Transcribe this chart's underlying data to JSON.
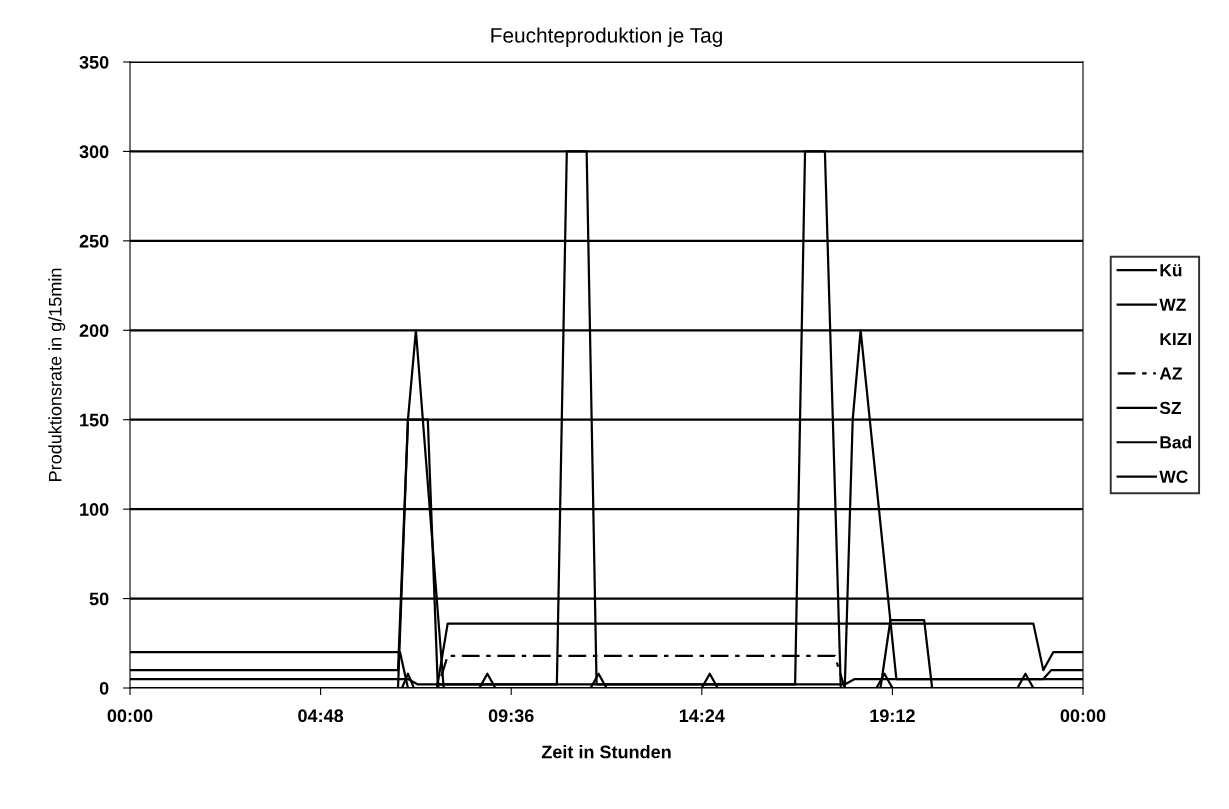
{
  "chart_data": {
    "type": "line",
    "title": "Feuchteproduktion je Tag",
    "xlabel": "Zeit in Stunden",
    "ylabel": "Produktionsrate in g/15min",
    "xlim": [
      0,
      24
    ],
    "xticks": [
      {
        "value": 0,
        "label": "00:00"
      },
      {
        "value": 4.8,
        "label": "04:48"
      },
      {
        "value": 9.6,
        "label": "09:36"
      },
      {
        "value": 14.4,
        "label": "14:24"
      },
      {
        "value": 19.2,
        "label": "19:12"
      },
      {
        "value": 24,
        "label": "00:00"
      }
    ],
    "ylim": [
      0,
      350
    ],
    "yticks": [
      0,
      50,
      100,
      150,
      200,
      250,
      300,
      350
    ],
    "grid": "y",
    "legend": "right",
    "marker": "none",
    "series": [
      {
        "name": "Kü",
        "color": "#000000",
        "x": [
          0,
          6.75,
          7.0,
          7.5,
          7.75,
          10.75,
          11.0,
          11.5,
          11.75,
          16.75,
          17.0,
          17.5,
          17.9,
          18.9,
          19.15,
          20.0,
          20.2,
          24
        ],
        "values": [
          0,
          0,
          150,
          150,
          2,
          2,
          300,
          300,
          2,
          2,
          300,
          300,
          0,
          0,
          38,
          38,
          0,
          0
        ]
      },
      {
        "name": "WZ",
        "color": "#000000",
        "x": [
          0,
          6.8,
          7.0,
          7.73,
          8.0,
          22.75,
          23.0,
          23.25,
          24
        ],
        "values": [
          20,
          20,
          0,
          0,
          36,
          36,
          10,
          20,
          20
        ]
      },
      {
        "name": "KIZI"
      },
      {
        "name": "AZ",
        "color": "#000000",
        "line_style": "dashed",
        "x": [
          0,
          7.75,
          8.0,
          17.75,
          18.0,
          24
        ],
        "values": [
          0,
          0,
          18,
          18,
          0,
          0
        ]
      },
      {
        "name": "SZ",
        "color": "#000000",
        "x": [
          0,
          6.85,
          7.0,
          7.15,
          8.8,
          9.0,
          9.2,
          11.6,
          11.8,
          12.0,
          14.4,
          14.6,
          14.8,
          18.8,
          19.0,
          19.2,
          22.35,
          22.55,
          22.75,
          24
        ],
        "values": [
          0,
          0,
          8,
          0,
          0,
          8,
          0,
          0,
          8,
          0,
          0,
          8,
          0,
          0,
          8,
          0,
          0,
          8,
          0,
          0
        ]
      },
      {
        "name": "Bad",
        "color": "#000000",
        "x": [
          0,
          6.75,
          7.0,
          7.2,
          7.9,
          18.0,
          18.2,
          18.4,
          19.3,
          23.0,
          23.2,
          24
        ],
        "values": [
          10,
          10,
          150,
          200,
          0,
          0,
          150,
          200,
          5,
          5,
          10,
          10
        ]
      },
      {
        "name": "WC",
        "color": "#000000",
        "x": [
          0,
          7.0,
          7.25,
          18.0,
          18.25,
          24
        ],
        "values": [
          5,
          5,
          2,
          2,
          5,
          5
        ]
      }
    ]
  }
}
